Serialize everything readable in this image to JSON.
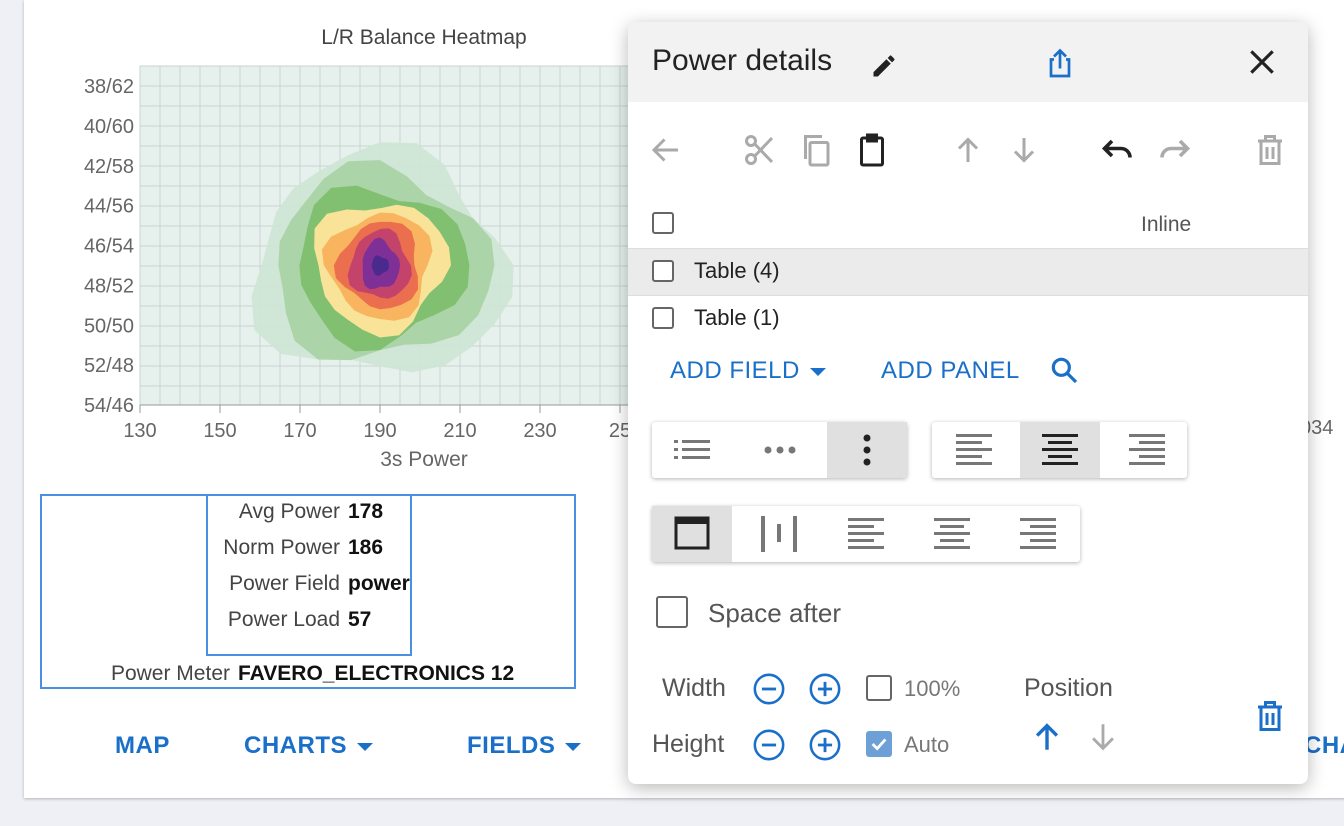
{
  "chart_data": {
    "type": "heatmap",
    "title": "L/R Balance Heatmap",
    "xlabel": "3s Power",
    "x_ticks": [
      "130",
      "150",
      "170",
      "190",
      "210",
      "230",
      "25"
    ],
    "x_ticks_right": [
      "034"
    ],
    "y_ticks": [
      "38/62",
      "40/60",
      "42/58",
      "44/56",
      "46/54",
      "48/52",
      "50/50",
      "52/48",
      "54/46"
    ],
    "xlim": [
      130,
      250
    ],
    "ylim": [
      "38/62",
      "54/46"
    ],
    "grid": true,
    "density_peak": {
      "x": 190,
      "y": "47/53"
    },
    "colors": [
      "#cfe5d6",
      "#a9d3a6",
      "#7fbf6e",
      "#ffe59a",
      "#f8b15c",
      "#ea6a4e",
      "#c2406c",
      "#7b2f9a",
      "#4a2a8c"
    ]
  },
  "fields": {
    "rows": [
      {
        "label": "Avg Power",
        "value": "178"
      },
      {
        "label": "Norm Power",
        "value": "186"
      },
      {
        "label": "Power Field",
        "value": "power"
      },
      {
        "label": "Power Load",
        "value": "57"
      }
    ],
    "meter_label": "Power Meter",
    "meter_value": "FAVERO_ELECTRONICS 12"
  },
  "bottom_nav": {
    "map": "MAP",
    "charts": "CHARTS",
    "fields": "FIELDS",
    "right_partial": "CHA"
  },
  "dialog": {
    "title": "Power details",
    "header_col": "Inline",
    "items": [
      {
        "label": "Table (4)"
      },
      {
        "label": "Table (1)"
      }
    ],
    "add_field": "ADD FIELD",
    "add_panel": "ADD PANEL",
    "space_after": "Space after",
    "width_label": "Width",
    "height_label": "Height",
    "width_pct": "100%",
    "height_auto": "Auto",
    "position_label": "Position"
  },
  "colors": {
    "accent": "#1a6fc9",
    "border": "#4a90e2"
  }
}
